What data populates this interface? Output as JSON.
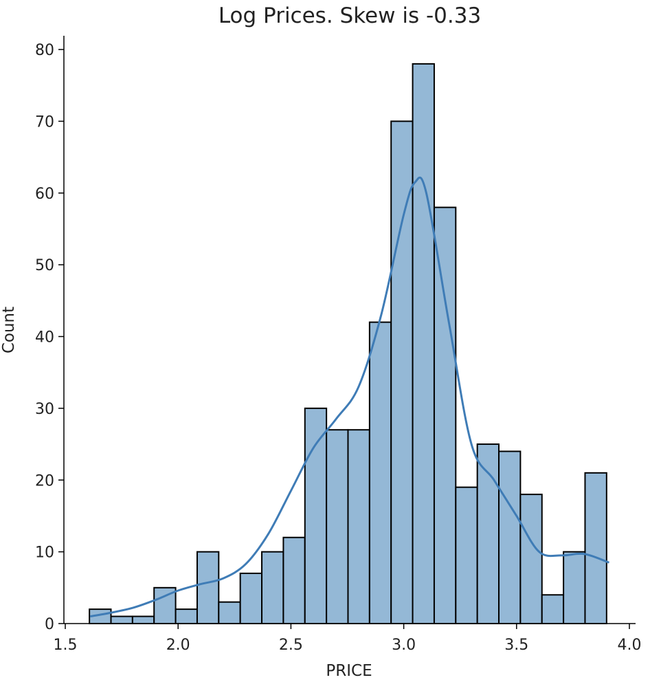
{
  "chart_data": {
    "type": "bar",
    "title": "Log Prices. Skew is -0.33",
    "xlabel": "PRICE",
    "ylabel": "Count",
    "xlim": [
      1.5,
      4.0
    ],
    "ylim": [
      0,
      82
    ],
    "grid": false,
    "x_ticks": [
      1.5,
      2.0,
      2.5,
      3.0,
      3.5,
      4.0
    ],
    "x_tick_labels": [
      "1.5",
      "2.0",
      "2.5",
      "3.0",
      "3.5",
      "4.0"
    ],
    "y_ticks": [
      0,
      10,
      20,
      30,
      40,
      50,
      60,
      70,
      80
    ],
    "y_tick_labels": [
      "0",
      "10",
      "20",
      "30",
      "40",
      "50",
      "60",
      "70",
      "80"
    ],
    "bin_start": 1.607,
    "bin_width": 0.0955,
    "values": [
      2,
      1,
      1,
      5,
      2,
      10,
      3,
      7,
      10,
      12,
      30,
      27,
      27,
      42,
      70,
      78,
      58,
      19,
      25,
      24,
      18,
      4,
      10,
      21
    ],
    "kde": {
      "x": [
        1.61,
        1.7,
        1.8,
        1.9,
        2.0,
        2.1,
        2.2,
        2.3,
        2.4,
        2.5,
        2.6,
        2.7,
        2.8,
        2.9,
        3.0,
        3.05,
        3.1,
        3.2,
        3.3,
        3.4,
        3.5,
        3.6,
        3.7,
        3.8,
        3.91
      ],
      "y": [
        1.0,
        1.5,
        2.2,
        3.3,
        4.6,
        5.5,
        6.3,
        8.3,
        12.5,
        18.5,
        24.5,
        28.5,
        33,
        43,
        57,
        61.5,
        60,
        42,
        25,
        20,
        15,
        10,
        9.5,
        9.7,
        8.5
      ]
    }
  }
}
